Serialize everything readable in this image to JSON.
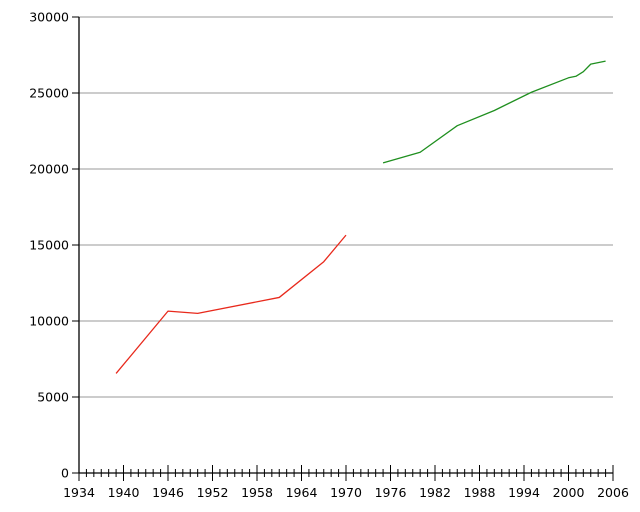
{
  "chart_data": {
    "type": "line",
    "title": "",
    "xlabel": "",
    "ylabel": "",
    "xlim": [
      1934,
      2006
    ],
    "ylim": [
      0,
      30000
    ],
    "grid": true,
    "x_ticks": [
      1934,
      1940,
      1946,
      1952,
      1958,
      1964,
      1970,
      1976,
      1982,
      1988,
      1994,
      2000,
      2006
    ],
    "x_minor_step": 1,
    "y_ticks": [
      0,
      5000,
      10000,
      15000,
      20000,
      25000,
      30000
    ],
    "series": [
      {
        "color": "#e8291c",
        "points": [
          [
            1939,
            6550
          ],
          [
            1946,
            10650
          ],
          [
            1950,
            10500
          ],
          [
            1961,
            11550
          ],
          [
            1967,
            13900
          ],
          [
            1970,
            15650
          ]
        ]
      },
      {
        "color": "#1f8f1f",
        "points": [
          [
            1975,
            20400
          ],
          [
            1980,
            21100
          ],
          [
            1985,
            22850
          ],
          [
            1990,
            23850
          ],
          [
            1995,
            25050
          ],
          [
            2000,
            26000
          ],
          [
            2001,
            26100
          ],
          [
            2002,
            26400
          ],
          [
            2003,
            26900
          ],
          [
            2004,
            27000
          ],
          [
            2005,
            27100
          ]
        ]
      }
    ]
  }
}
